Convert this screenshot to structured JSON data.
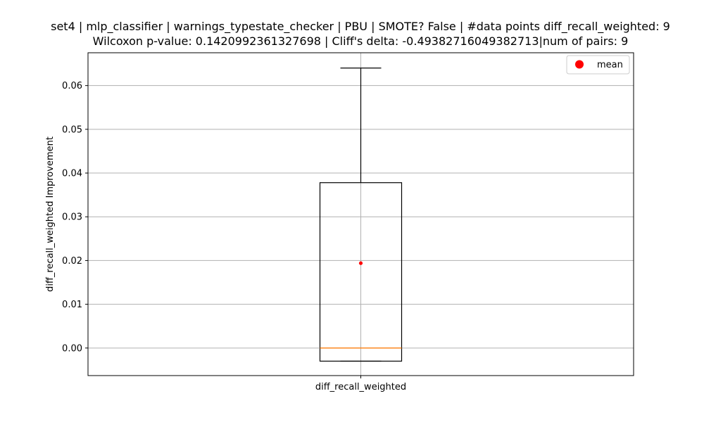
{
  "chart_data": {
    "type": "box",
    "title_line1": "set4 | mlp_classifier | warnings_typestate_checker | PBU | SMOTE? False | #data points diff_recall_weighted: 9",
    "title_line2": "Wilcoxon p-value: 0.1420992361327698 | Cliff's delta: -0.49382716049382713|num of pairs: 9",
    "xlabel": "",
    "ylabel": "diff_recall_weighted Improvement",
    "categories": [
      "diff_recall_weighted"
    ],
    "ylim": [
      -0.0063,
      0.0675
    ],
    "yticks": [
      0.0,
      0.01,
      0.02,
      0.03,
      0.04,
      0.05,
      0.06
    ],
    "ytick_labels": [
      "0.00",
      "0.01",
      "0.02",
      "0.03",
      "0.04",
      "0.05",
      "0.06"
    ],
    "grid": true,
    "legend_position": "top-right",
    "legend": [
      {
        "label": "mean",
        "color": "#ff0000",
        "marker": "circle"
      }
    ],
    "boxes": [
      {
        "name": "diff_recall_weighted",
        "whisker_low": -0.003,
        "q1": -0.003,
        "median": 0.0,
        "q3": 0.0378,
        "whisker_high": 0.064,
        "mean": 0.0194
      }
    ],
    "colors": {
      "box": "#000000",
      "median": "#ff7f0e",
      "mean": "#ff0000",
      "grid": "#b0b0b0"
    }
  }
}
